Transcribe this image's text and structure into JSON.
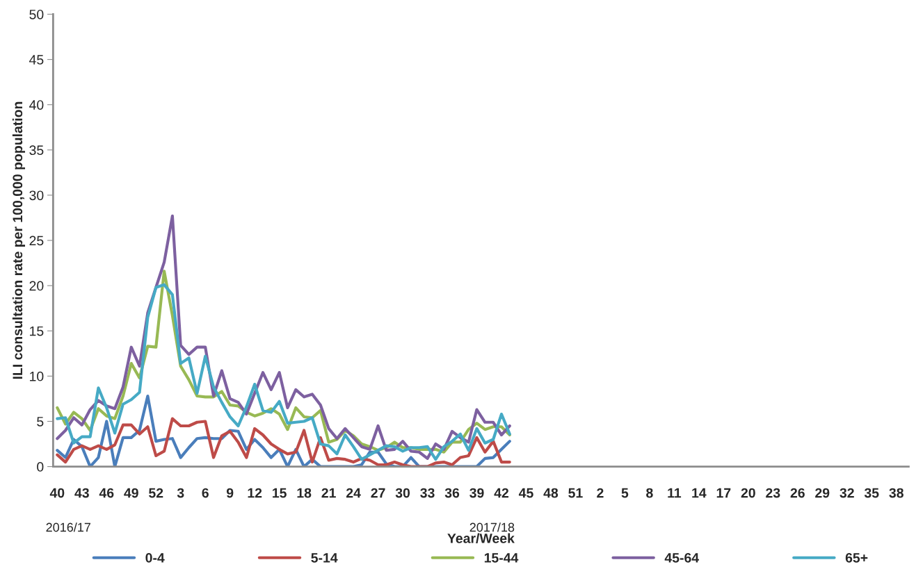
{
  "chart_data": {
    "type": "line",
    "xlabel": "Year/Week",
    "ylabel": "ILI consultation rate per 100,000 population",
    "categories": [
      "40",
      null,
      null,
      "43",
      null,
      null,
      "46",
      null,
      null,
      "49",
      null,
      null,
      "52",
      null,
      null,
      "3",
      null,
      null,
      "6",
      null,
      null,
      "9",
      null,
      null,
      "12",
      null,
      null,
      "15",
      null,
      null,
      "18",
      null,
      null,
      "21",
      null,
      null,
      "24",
      null,
      null,
      "27",
      null,
      null,
      "30",
      null,
      null,
      "33",
      null,
      null,
      "36",
      null,
      null,
      "39",
      null,
      null,
      "42",
      null,
      null,
      "45",
      null,
      null,
      "48",
      null,
      null,
      "51",
      null,
      null,
      "2",
      null,
      null,
      "5",
      null,
      null,
      "8",
      null,
      null,
      "11",
      null,
      null,
      "14",
      null,
      null,
      "17",
      null,
      null,
      "20",
      null,
      null,
      "23",
      null,
      null,
      "26",
      null,
      null,
      "29",
      null,
      null,
      "32",
      null,
      null,
      "35",
      null,
      null,
      "38",
      null
    ],
    "series": [
      {
        "name": "0-4",
        "color": "#4a7ebb",
        "values": [
          1.8,
          1.0,
          3.0,
          2.2,
          0,
          1.0,
          5.0,
          0,
          3.2,
          3.2,
          4.0,
          7.8,
          2.8,
          3.0,
          3.1,
          1.0,
          2.1,
          3.1,
          3.2,
          3.1,
          3.1,
          4.0,
          3.9,
          1.9,
          3.0,
          2.1,
          1.0,
          1.9,
          0,
          1.9,
          0,
          0.8,
          0,
          0,
          0,
          0,
          0,
          0.2,
          1.6,
          1.6,
          0.3,
          0,
          0,
          1.0,
          0,
          0,
          0,
          0,
          0,
          0,
          0,
          0,
          0.9,
          1.0,
          1.9,
          2.8,
          null,
          null,
          null,
          null,
          null,
          null,
          null,
          null,
          null,
          null,
          null,
          null,
          null,
          null,
          null,
          null,
          null,
          null,
          null,
          null,
          null,
          null,
          null,
          null,
          null,
          null,
          null,
          null,
          null,
          null,
          null,
          null,
          null,
          null,
          null,
          null,
          null,
          null,
          null,
          null,
          null,
          null,
          null,
          null,
          null,
          null,
          null,
          null
        ]
      },
      {
        "name": "5-14",
        "color": "#be4b48",
        "values": [
          1.3,
          0.5,
          1.9,
          2.3,
          1.9,
          2.3,
          1.9,
          2.4,
          4.6,
          4.6,
          3.6,
          4.4,
          1.2,
          1.7,
          5.3,
          4.5,
          4.5,
          4.9,
          5.0,
          1.0,
          3.4,
          3.9,
          2.7,
          1.0,
          4.2,
          3.5,
          2.5,
          1.9,
          1.4,
          1.6,
          4.0,
          0.5,
          3.2,
          0.7,
          0.9,
          0.8,
          0.5,
          0.9,
          0.7,
          0.2,
          0.2,
          0.5,
          0.2,
          0,
          0,
          0,
          0.4,
          0.5,
          0.2,
          1.0,
          1.2,
          3.2,
          1.6,
          2.8,
          0.5,
          0.5,
          null,
          null,
          null,
          null,
          null,
          null,
          null,
          null,
          null,
          null,
          null,
          null,
          null,
          null,
          null,
          null,
          null,
          null,
          null,
          null,
          null,
          null,
          null,
          null,
          null,
          null,
          null,
          null,
          null,
          null,
          null,
          null,
          null,
          null,
          null,
          null,
          null,
          null,
          null,
          null,
          null,
          null,
          null,
          null,
          null,
          null,
          null,
          null
        ]
      },
      {
        "name": "15-44",
        "color": "#98b954",
        "values": [
          6.5,
          4.7,
          6.0,
          5.3,
          4.0,
          6.4,
          5.6,
          5.3,
          7.8,
          11.4,
          9.8,
          13.3,
          13.2,
          21.6,
          16.7,
          11.1,
          9.6,
          7.8,
          7.7,
          7.7,
          8.3,
          6.8,
          6.7,
          6.0,
          5.6,
          5.9,
          6.4,
          5.8,
          4.1,
          6.5,
          5.5,
          5.4,
          6.2,
          2.7,
          3.0,
          4.0,
          3.4,
          2.5,
          2.2,
          1.8,
          2.1,
          2.7,
          2.1,
          2.1,
          1.9,
          1.9,
          1.9,
          1.6,
          2.7,
          2.7,
          4.1,
          4.8,
          4.1,
          4.4,
          4.4,
          3.5,
          null,
          null,
          null,
          null,
          null,
          null,
          null,
          null,
          null,
          null,
          null,
          null,
          null,
          null,
          null,
          null,
          null,
          null,
          null,
          null,
          null,
          null,
          null,
          null,
          null,
          null,
          null,
          null,
          null,
          null,
          null,
          null,
          null,
          null,
          null,
          null,
          null,
          null,
          null,
          null,
          null,
          null,
          null,
          null,
          null,
          null,
          null,
          null
        ]
      },
      {
        "name": "45-64",
        "color": "#7d60a0",
        "values": [
          3.1,
          4.0,
          5.4,
          4.6,
          6.3,
          7.3,
          6.7,
          6.4,
          8.8,
          13.2,
          11.1,
          17.0,
          19.8,
          22.6,
          27.7,
          13.4,
          12.4,
          13.2,
          13.2,
          7.8,
          10.6,
          7.5,
          7.1,
          5.8,
          8.1,
          10.4,
          8.5,
          10.4,
          6.5,
          8.5,
          7.7,
          8.0,
          6.8,
          4.2,
          3.1,
          4.2,
          3.2,
          2.2,
          1.9,
          4.5,
          1.8,
          1.9,
          2.8,
          1.7,
          1.6,
          0.9,
          2.5,
          1.9,
          3.9,
          3.2,
          2.7,
          6.3,
          4.9,
          4.9,
          3.5,
          4.5,
          null,
          null,
          null,
          null,
          null,
          null,
          null,
          null,
          null,
          null,
          null,
          null,
          null,
          null,
          null,
          null,
          null,
          null,
          null,
          null,
          null,
          null,
          null,
          null,
          null,
          null,
          null,
          null,
          null,
          null,
          null,
          null,
          null,
          null,
          null,
          null,
          null,
          null,
          null,
          null,
          null,
          null,
          null,
          null,
          null,
          null,
          null,
          null
        ]
      },
      {
        "name": "65+",
        "color": "#46aac5",
        "values": [
          5.3,
          5.4,
          2.6,
          3.3,
          3.3,
          8.7,
          6.5,
          3.7,
          6.9,
          7.4,
          8.2,
          16.5,
          19.8,
          20.1,
          19.0,
          11.4,
          12.0,
          8.1,
          12.2,
          8.8,
          7.1,
          5.5,
          4.5,
          6.6,
          9.1,
          6.2,
          6.0,
          7.2,
          4.8,
          4.9,
          5.0,
          5.4,
          2.5,
          2.3,
          1.4,
          3.5,
          2.2,
          0.8,
          1.3,
          1.8,
          2.3,
          2.2,
          1.7,
          2.1,
          2.1,
          2.2,
          0.8,
          2.2,
          2.8,
          3.6,
          1.8,
          4.2,
          2.6,
          3.0,
          5.8,
          3.6,
          null,
          null,
          null,
          null,
          null,
          null,
          null,
          null,
          null,
          null,
          null,
          null,
          null,
          null,
          null,
          null,
          null,
          null,
          null,
          null,
          null,
          null,
          null,
          null,
          null,
          null,
          null,
          null,
          null,
          null,
          null,
          null,
          null,
          null,
          null,
          null,
          null,
          null,
          null,
          null,
          null,
          null,
          null,
          null,
          null,
          null,
          null,
          null
        ]
      }
    ],
    "ylim": [
      0,
      50
    ],
    "yticks": [
      0,
      5,
      10,
      15,
      20,
      25,
      30,
      35,
      40,
      45,
      50
    ],
    "grid": false,
    "legend": "bottom",
    "annotations": [
      "2016/17",
      "2017/18"
    ]
  }
}
